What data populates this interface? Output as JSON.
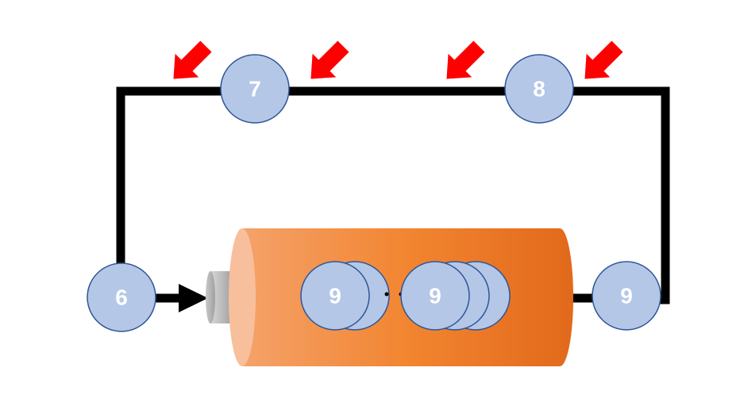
{
  "colors": {
    "wire": "#000000",
    "node_fill": "#b4c7e7",
    "node_stroke": "#2f5597",
    "node_text": "#ffffff",
    "arrow": "#ff0000",
    "battery_body_light": "#f4b183",
    "battery_body_mid": "#f08a3c",
    "battery_body_dark": "#e06a18",
    "battery_cap": "#f8cbad",
    "terminal_light": "#d0d0d0",
    "terminal_dark": "#8a8a8a"
  },
  "nodes": {
    "left": "6",
    "top_left": "7",
    "top_right": "8",
    "right": "9",
    "inside_group_1": "9",
    "inside_group_2": "9"
  },
  "icons": {
    "emission_arrow": "red-arrow-icon",
    "flow_arrow": "black-arrow-head-icon",
    "terminal": "battery-terminal-icon"
  },
  "ellipsis": "·  ·"
}
